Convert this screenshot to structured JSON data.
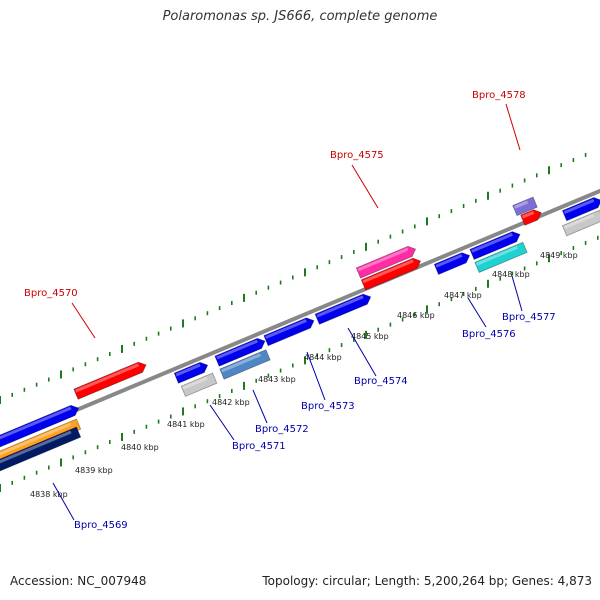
{
  "header": {
    "title": "Polaromonas sp. JS666, complete genome"
  },
  "footer": {
    "accession": "Accession: NC_007948",
    "stats": "Topology: circular; Length: 5,200,264 bp; Genes: 4,873"
  },
  "colors": {
    "backbone": "#888888",
    "tick": "#1e7a1e",
    "forward_label": "#cc0000",
    "reverse_label": "#0000aa",
    "gene_red": "#ff0000",
    "gene_blue": "#0000ee",
    "gene_magenta": "#ff2ca6",
    "gene_purple": "#7b6fd6",
    "gene_cyan": "#1fd2d2",
    "gene_gray": "#c8c8c8",
    "gene_orange": "#ffa020",
    "gene_navy": "#001a66",
    "gene_steel": "#4f86c6"
  },
  "tick_labels": [
    "4838 kbp",
    "4839 kbp",
    "4840 kbp",
    "4841 kbp",
    "4842 kbp",
    "4843 kbp",
    "4844 kbp",
    "4845 kbp",
    "4846 kbp",
    "4847 kbp",
    "4848 kbp",
    "4849 kbp"
  ],
  "gene_labels": {
    "forward": [
      "Bpro_4570",
      "Bpro_4575",
      "Bpro_4578"
    ],
    "reverse": [
      "Bpro_4569",
      "Bpro_4571",
      "Bpro_4572",
      "Bpro_4573",
      "Bpro_4574",
      "Bpro_4576",
      "Bpro_4577"
    ]
  }
}
